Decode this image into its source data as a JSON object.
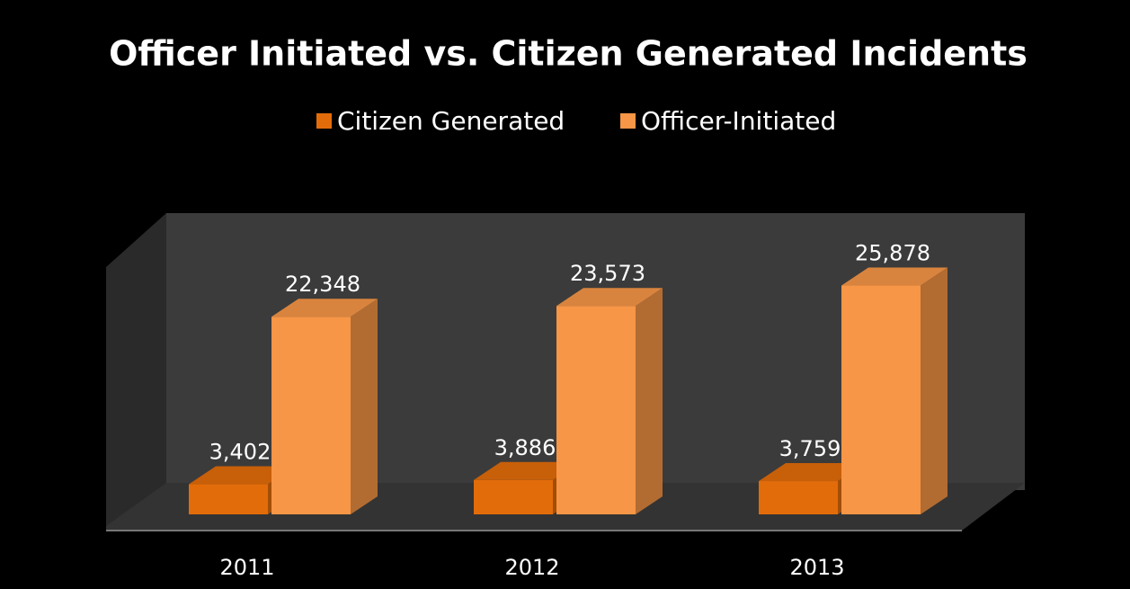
{
  "chart_data": {
    "type": "bar3d",
    "title": "Officer Initiated vs. Citizen Generated Incidents",
    "categories": [
      "2011",
      "2012",
      "2013"
    ],
    "series": [
      {
        "name": "Citizen Generated",
        "color": "#e36c0a",
        "values": [
          3402,
          3886,
          3759
        ],
        "value_labels": [
          "3,402",
          "3,886",
          "3,759"
        ]
      },
      {
        "name": "Officer-Initiated",
        "color": "#f79646",
        "values": [
          22348,
          23573,
          25878
        ],
        "value_labels": [
          "22,348",
          "23,573",
          "25,878"
        ]
      }
    ],
    "ylim": [
      0,
      30000
    ],
    "legend": "top"
  }
}
